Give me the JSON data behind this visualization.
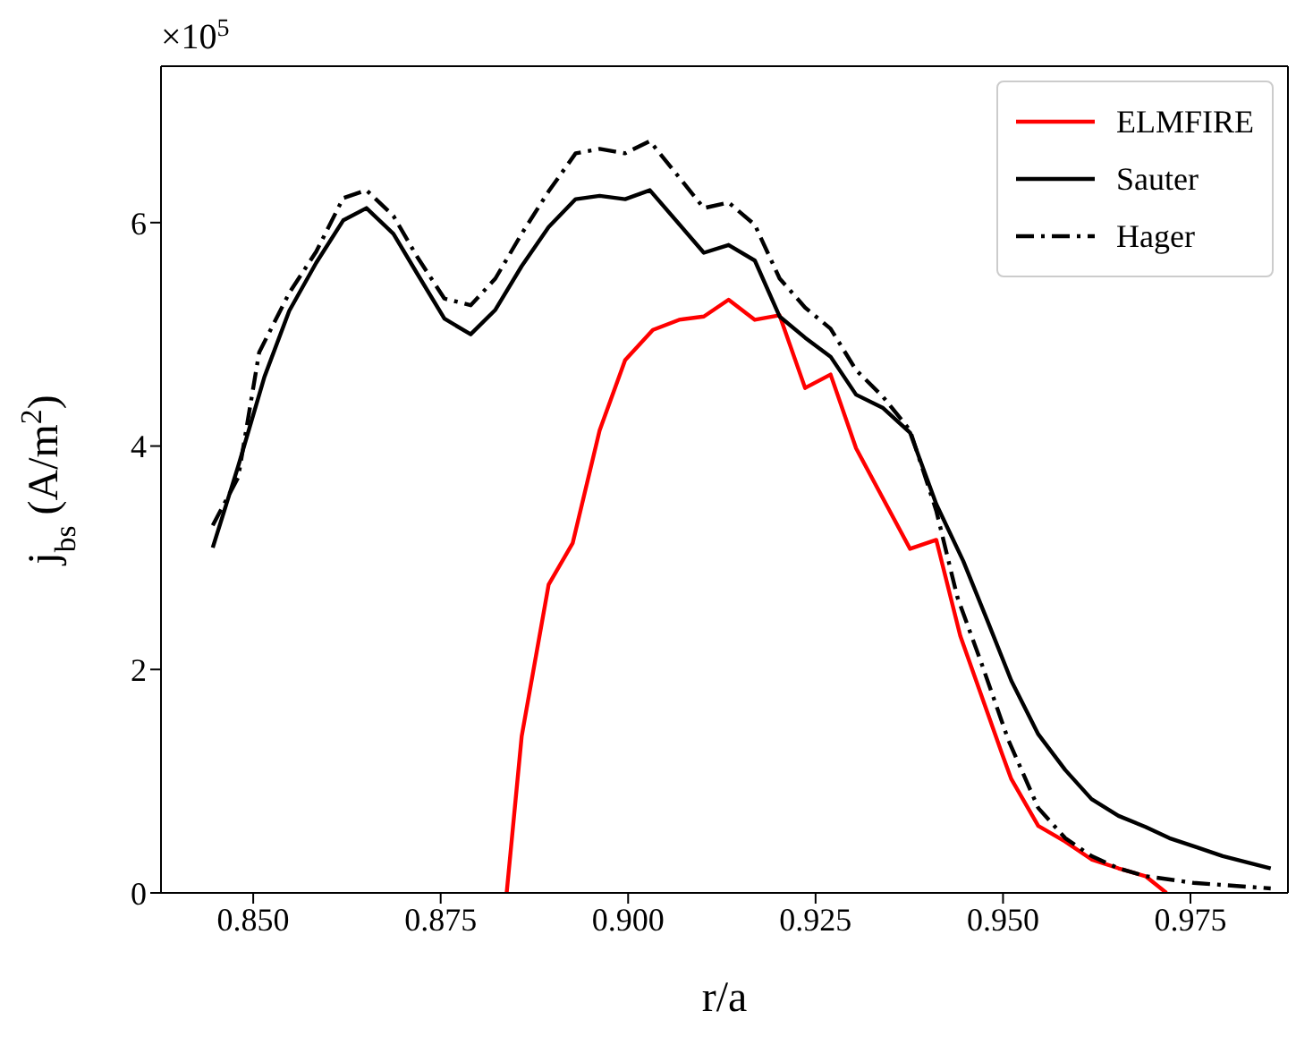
{
  "chart_data": {
    "type": "line",
    "xlabel": "r/a",
    "ylabel": "j$_{bs}$ (A/m$^{2}$)",
    "annotations": [
      "×10$^{5}$"
    ],
    "xlim": [
      0.8377,
      0.988
    ],
    "ylim": [
      0,
      7.4
    ],
    "xticks": [
      {
        "value": 0.85,
        "label": "0.850"
      },
      {
        "value": 0.875,
        "label": "0.875"
      },
      {
        "value": 0.9,
        "label": "0.900"
      },
      {
        "value": 0.925,
        "label": "0.925"
      },
      {
        "value": 0.95,
        "label": "0.950"
      },
      {
        "value": 0.975,
        "label": "0.975"
      }
    ],
    "yticks": [
      0,
      2,
      4,
      6
    ],
    "legend": "top right",
    "series": [
      {
        "name": "ELMFIRE",
        "color": "#ff0000",
        "line_style": "solid",
        "x": [
          0.8838,
          0.8858,
          0.8894,
          0.8926,
          0.8962,
          0.8996,
          0.9033,
          0.9068,
          0.9101,
          0.9134,
          0.9169,
          0.9202,
          0.9236,
          0.927,
          0.9304,
          0.934,
          0.9376,
          0.9411,
          0.9443,
          0.9499,
          0.9511,
          0.9547,
          0.9583,
          0.9618,
          0.9654,
          0.969,
          0.9718
        ],
        "values": [
          0,
          1.4,
          2.76,
          3.13,
          4.14,
          4.77,
          5.04,
          5.13,
          5.16,
          5.31,
          5.13,
          5.17,
          4.52,
          4.64,
          3.98,
          3.53,
          3.08,
          3.16,
          2.3,
          1.24,
          1.02,
          0.6,
          0.46,
          0.3,
          0.22,
          0.15,
          0
        ]
      },
      {
        "name": "Sauter",
        "color": "#000000",
        "line_style": "solid",
        "x": [
          0.8446,
          0.848,
          0.8515,
          0.8548,
          0.8584,
          0.862,
          0.8651,
          0.8687,
          0.8719,
          0.8755,
          0.879,
          0.8823,
          0.8858,
          0.8894,
          0.893,
          0.8962,
          0.8996,
          0.9029,
          0.9101,
          0.9134,
          0.9169,
          0.9202,
          0.9236,
          0.927,
          0.9304,
          0.934,
          0.9376,
          0.9411,
          0.9447,
          0.9479,
          0.9511,
          0.9547,
          0.9583,
          0.9618,
          0.9654,
          0.969,
          0.9722,
          0.9758,
          0.9793,
          0.9857
        ],
        "values": [
          3.09,
          3.82,
          4.62,
          5.21,
          5.64,
          6.02,
          6.13,
          5.9,
          5.54,
          5.14,
          5.0,
          5.22,
          5.61,
          5.96,
          6.21,
          6.24,
          6.21,
          6.29,
          5.73,
          5.8,
          5.66,
          5.16,
          4.97,
          4.8,
          4.46,
          4.34,
          4.12,
          3.48,
          2.97,
          2.44,
          1.9,
          1.42,
          1.1,
          0.84,
          0.69,
          0.59,
          0.49,
          0.41,
          0.33,
          0.22
        ]
      },
      {
        "name": "Hager",
        "color": "#000000",
        "line_style": "dashed",
        "x": [
          0.8446,
          0.848,
          0.8508,
          0.8548,
          0.8584,
          0.862,
          0.8651,
          0.8687,
          0.8719,
          0.8755,
          0.879,
          0.8823,
          0.8858,
          0.8894,
          0.893,
          0.8962,
          0.8996,
          0.9029,
          0.9101,
          0.9134,
          0.9169,
          0.9202,
          0.9236,
          0.927,
          0.9304,
          0.934,
          0.9376,
          0.9411,
          0.9439,
          0.9471,
          0.9507,
          0.9547,
          0.9583,
          0.9618,
          0.9654,
          0.969,
          0.9754,
          0.9857
        ],
        "values": [
          3.29,
          3.72,
          4.84,
          5.37,
          5.74,
          6.22,
          6.29,
          6.06,
          5.69,
          5.32,
          5.26,
          5.5,
          5.9,
          6.28,
          6.62,
          6.66,
          6.62,
          6.73,
          6.13,
          6.18,
          5.98,
          5.5,
          5.24,
          5.05,
          4.68,
          4.44,
          4.14,
          3.42,
          2.65,
          2.06,
          1.37,
          0.76,
          0.49,
          0.33,
          0.22,
          0.15,
          0.09,
          0.04
        ]
      }
    ]
  }
}
